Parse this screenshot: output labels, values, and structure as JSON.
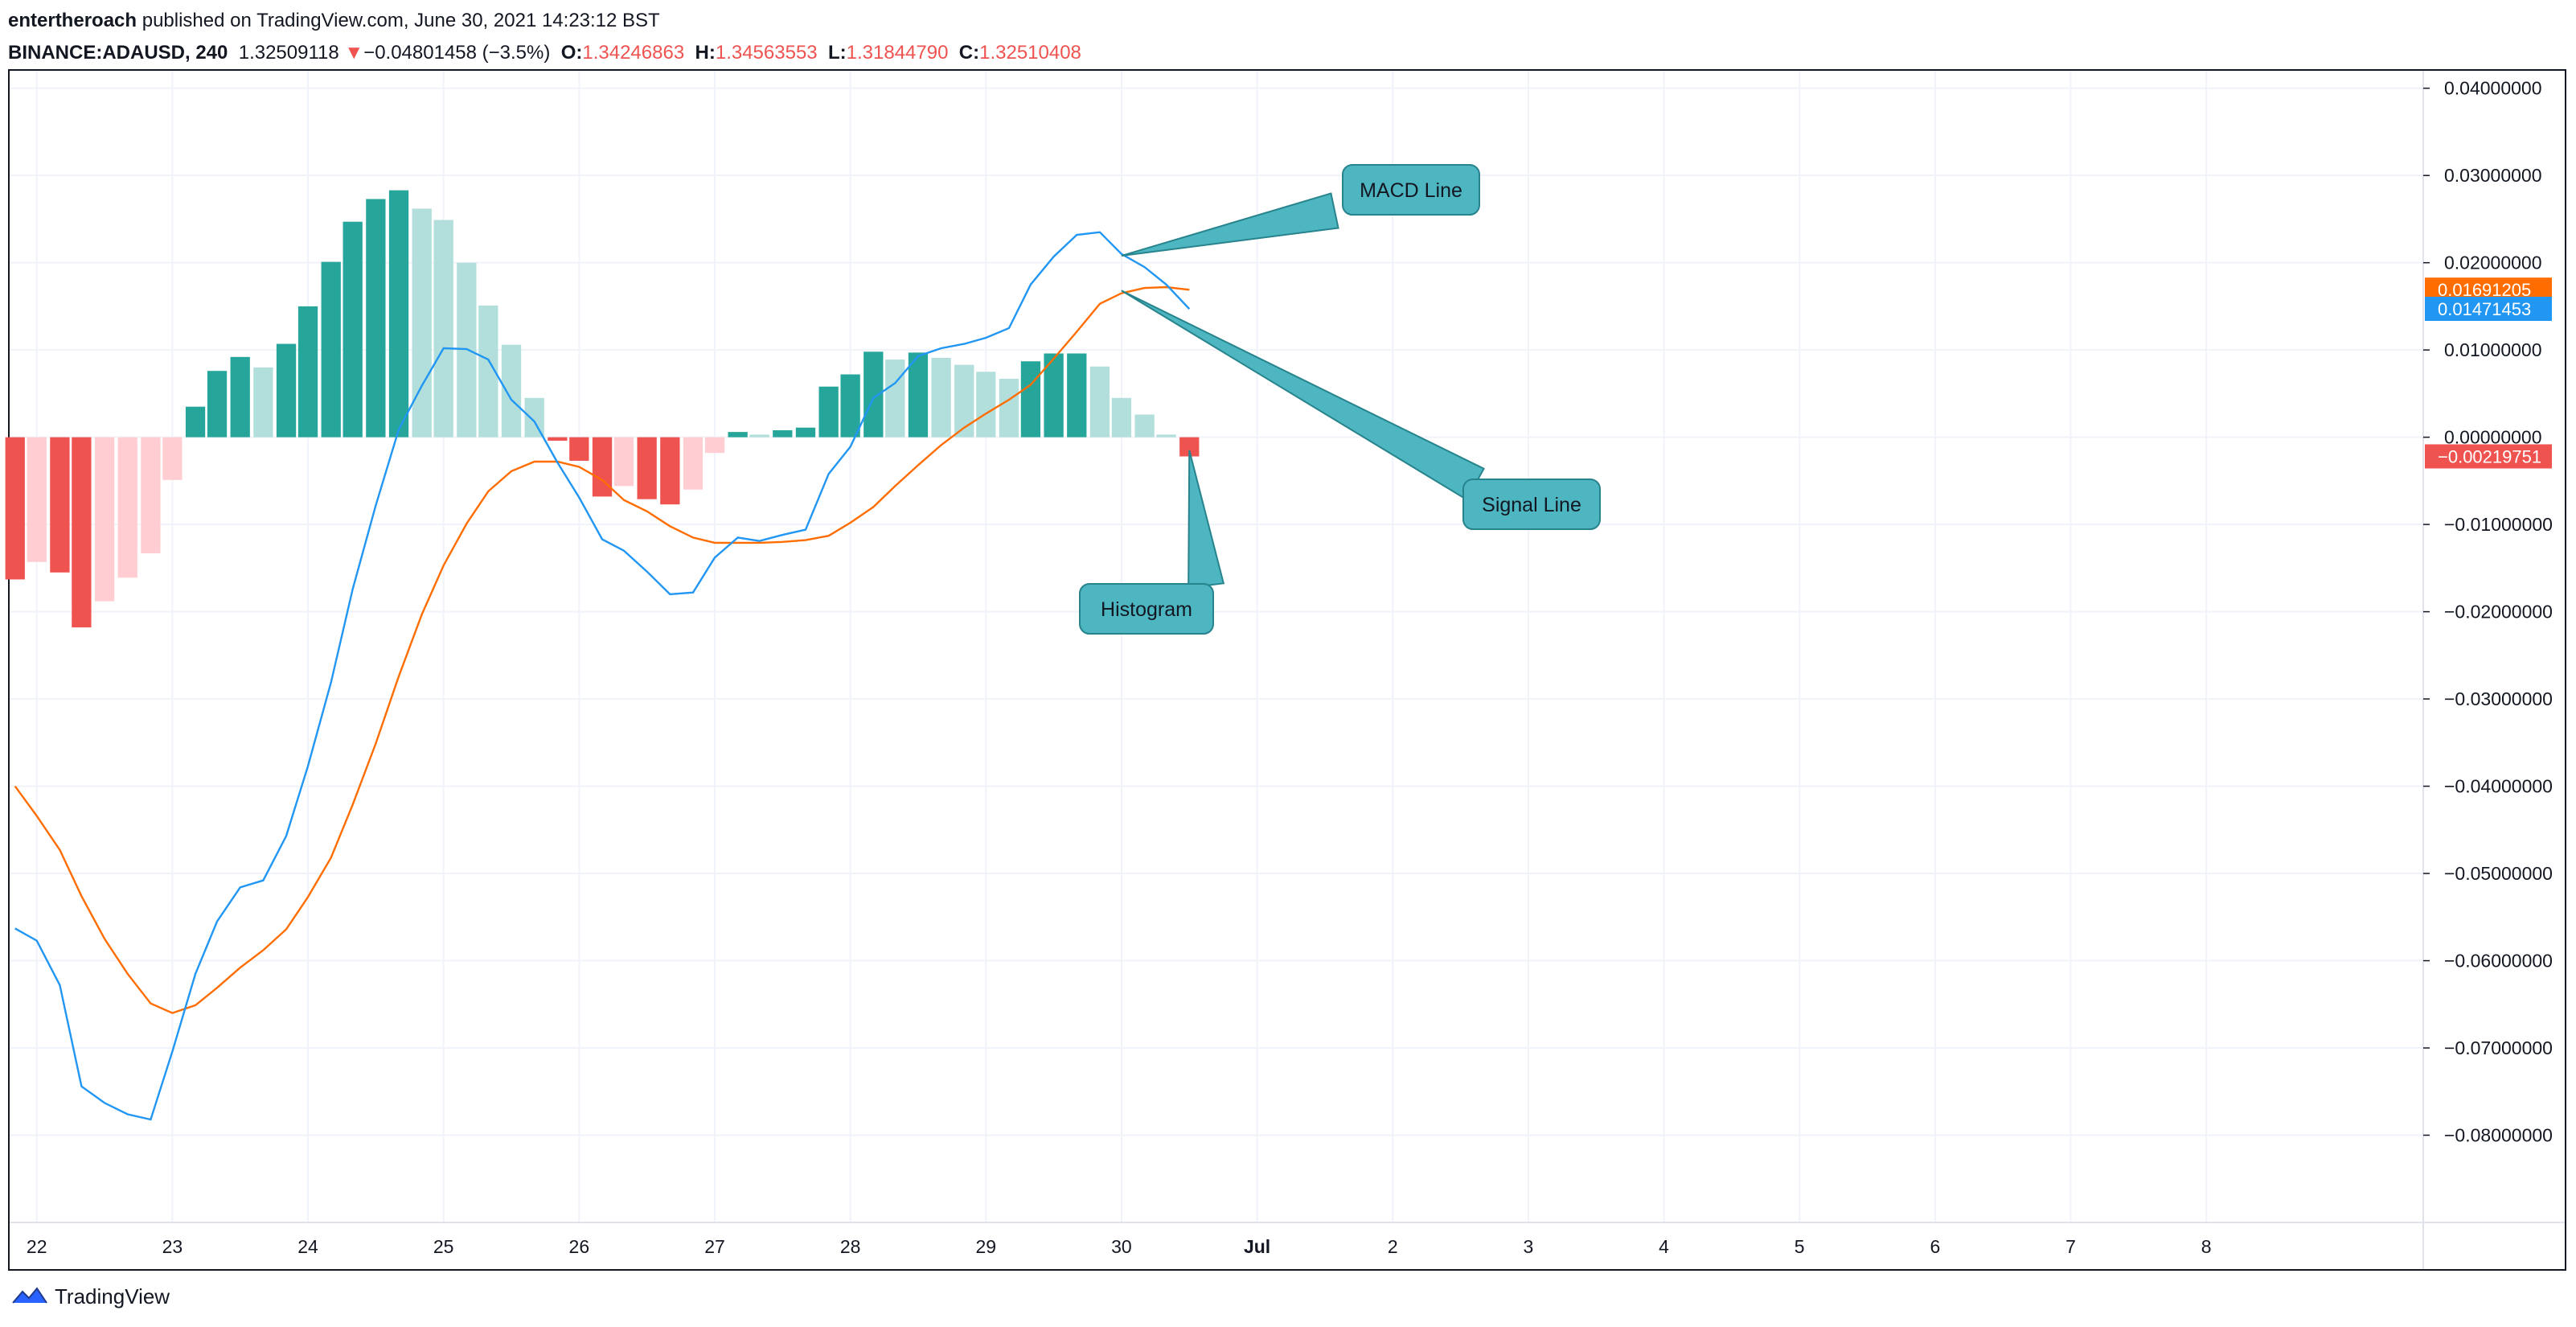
{
  "header": {
    "author": "entertheroach",
    "published_text": " published on TradingView.com, June 30, 2021 14:23:12 BST",
    "symbol": "BINANCE:ADAUSD, 240",
    "price": "1.32509118",
    "change_arrow": "▼",
    "change": "−0.04801458 (−3.5%)",
    "o_label": "O:",
    "o_value": "1.34246863",
    "h_label": "H:",
    "h_value": "1.34563553",
    "l_label": "L:",
    "l_value": "1.31844790",
    "c_label": "C:",
    "c_value": "1.32510408"
  },
  "footer": {
    "brand": "TradingView"
  },
  "colors": {
    "macd": "#2196f3",
    "signal": "#ff6d00",
    "hist_pos_strong": "#26a69a",
    "hist_pos_weak": "#b2dfdb",
    "hist_neg_strong": "#ef5350",
    "hist_neg_weak": "#ffcdd2",
    "callout": "#4db6c1",
    "callout_border": "#27838c"
  },
  "chart_data": {
    "type": "bar",
    "ylim": [
      -0.09,
      0.042
    ],
    "y_ticks": [
      "0.04000000",
      "0.03000000",
      "0.02000000",
      "0.01000000",
      "0.00000000",
      "−0.01000000",
      "−0.02000000",
      "−0.03000000",
      "−0.04000000",
      "−0.05000000",
      "−0.06000000",
      "−0.07000000",
      "−0.08000000"
    ],
    "y_tick_values": [
      0.04,
      0.03,
      0.02,
      0.01,
      0,
      -0.01,
      -0.02,
      -0.03,
      -0.04,
      -0.05,
      -0.06,
      -0.07,
      -0.08
    ],
    "x_ticks": [
      "22",
      "23",
      "24",
      "25",
      "26",
      "27",
      "28",
      "29",
      "30",
      "Jul",
      "2",
      "3",
      "4",
      "5",
      "6",
      "7",
      "8"
    ],
    "x_tick_values": [
      22,
      23,
      24,
      25,
      26,
      27,
      28,
      29,
      30,
      31,
      32,
      33,
      34,
      35,
      36,
      37,
      38
    ],
    "xlim": [
      21.8,
      39.6
    ],
    "series": [
      {
        "name": "Histogram",
        "type": "bar",
        "x": [
          21.84,
          22,
          22.17,
          22.33,
          22.5,
          22.67,
          22.84,
          23,
          23.17,
          23.33,
          23.5,
          23.67,
          23.84,
          24,
          24.17,
          24.33,
          24.5,
          24.67,
          24.84,
          25,
          25.17,
          25.33,
          25.5,
          25.67,
          25.84,
          26,
          26.17,
          26.33,
          26.5,
          26.67,
          26.84,
          27,
          27.17,
          27.33,
          27.5,
          27.67,
          27.84,
          28,
          28.17,
          28.33,
          28.5,
          28.67,
          28.84,
          29,
          29.17,
          29.33,
          29.5,
          29.67,
          29.84,
          30,
          30.17,
          30.33,
          30.5
        ],
        "values": [
          -0.0163,
          -0.0143,
          -0.0155,
          -0.0218,
          -0.0188,
          -0.0161,
          -0.0133,
          -0.0049,
          0.0035,
          0.0076,
          0.0092,
          0.008,
          0.0107,
          0.015,
          0.0201,
          0.0247,
          0.0273,
          0.0283,
          0.0262,
          0.0249,
          0.02,
          0.0151,
          0.0106,
          0.0045,
          -0.0004,
          -0.0027,
          -0.0068,
          -0.0056,
          -0.0071,
          -0.0077,
          -0.006,
          -0.0018,
          0.0006,
          0.0003,
          0.0008,
          0.0011,
          0.0058,
          0.0072,
          0.0098,
          0.0089,
          0.0097,
          0.0091,
          0.0083,
          0.0075,
          0.0067,
          0.0087,
          0.0096,
          0.0096,
          0.0081,
          0.0045,
          0.0026,
          0.0003,
          -0.0022
        ]
      },
      {
        "name": "MACD Line",
        "type": "line",
        "x": [
          21.84,
          22,
          22.17,
          22.33,
          22.5,
          22.67,
          22.84,
          23,
          23.17,
          23.33,
          23.5,
          23.67,
          23.84,
          24,
          24.17,
          24.33,
          24.5,
          24.67,
          24.84,
          25,
          25.17,
          25.33,
          25.5,
          25.67,
          25.84,
          26,
          26.17,
          26.33,
          26.5,
          26.67,
          26.84,
          27,
          27.17,
          27.33,
          27.5,
          27.67,
          27.84,
          28,
          28.17,
          28.33,
          28.5,
          28.67,
          28.84,
          29,
          29.17,
          29.33,
          29.5,
          29.67,
          29.84,
          30,
          30.17,
          30.33,
          30.5
        ],
        "values": [
          -0.0563,
          -0.0577,
          -0.0628,
          -0.0744,
          -0.0763,
          -0.0776,
          -0.0782,
          -0.0704,
          -0.0615,
          -0.0555,
          -0.0516,
          -0.0508,
          -0.0457,
          -0.0377,
          -0.0281,
          -0.0174,
          -0.0078,
          0.0009,
          0.0059,
          0.0102,
          0.0101,
          0.0089,
          0.0043,
          0.0018,
          -0.0029,
          -0.0069,
          -0.0117,
          -0.013,
          -0.0154,
          -0.018,
          -0.0178,
          -0.0138,
          -0.0115,
          -0.0119,
          -0.0112,
          -0.0106,
          -0.0042,
          -0.0011,
          0.0045,
          0.0062,
          0.0093,
          0.0102,
          0.0107,
          0.0114,
          0.0125,
          0.0175,
          0.0207,
          0.0232,
          0.0235,
          0.021,
          0.0195,
          0.0175,
          0.0147
        ]
      },
      {
        "name": "Signal Line",
        "type": "line",
        "x": [
          21.84,
          22,
          22.17,
          22.33,
          22.5,
          22.67,
          22.84,
          23,
          23.17,
          23.33,
          23.5,
          23.67,
          23.84,
          24,
          24.17,
          24.33,
          24.5,
          24.67,
          24.84,
          25,
          25.17,
          25.33,
          25.5,
          25.67,
          25.84,
          26,
          26.17,
          26.33,
          26.5,
          26.67,
          26.84,
          27,
          27.17,
          27.33,
          27.5,
          27.67,
          27.84,
          28,
          28.17,
          28.33,
          28.5,
          28.67,
          28.84,
          29,
          29.17,
          29.33,
          29.5,
          29.67,
          29.84,
          30,
          30.17,
          30.33,
          30.5
        ],
        "values": [
          -0.04,
          -0.0434,
          -0.0473,
          -0.0526,
          -0.0575,
          -0.0615,
          -0.0649,
          -0.066,
          -0.0651,
          -0.0631,
          -0.0608,
          -0.0588,
          -0.0564,
          -0.0527,
          -0.0482,
          -0.0421,
          -0.0351,
          -0.0274,
          -0.0203,
          -0.0147,
          -0.0099,
          -0.0062,
          -0.0039,
          -0.0028,
          -0.0028,
          -0.0034,
          -0.0049,
          -0.0072,
          -0.0085,
          -0.0102,
          -0.0115,
          -0.0121,
          -0.0121,
          -0.0121,
          -0.012,
          -0.0118,
          -0.0113,
          -0.0098,
          -0.008,
          -0.0056,
          -0.0032,
          -0.0009,
          0.0011,
          0.0027,
          0.0043,
          0.006,
          0.009,
          0.0121,
          0.0153,
          0.0165,
          0.0171,
          0.0172,
          0.0169
        ]
      }
    ],
    "last_values": [
      {
        "series": "Signal Line",
        "label": "0.01691205",
        "value": 0.01691205
      },
      {
        "series": "MACD Line",
        "label": "0.01471453",
        "value": 0.01471453
      },
      {
        "series": "Histogram",
        "label": "−0.00219751",
        "value": -0.00219751
      }
    ],
    "annotations": [
      {
        "text": "MACD Line",
        "anchor_x": 30.0,
        "anchor_y": 0.0208
      },
      {
        "text": "Signal Line",
        "anchor_x": 30.0,
        "anchor_y": 0.0168
      },
      {
        "text": "Histogram",
        "anchor_x": 30.5,
        "anchor_y": -0.0015
      }
    ],
    "grid": true,
    "legend": "none"
  }
}
